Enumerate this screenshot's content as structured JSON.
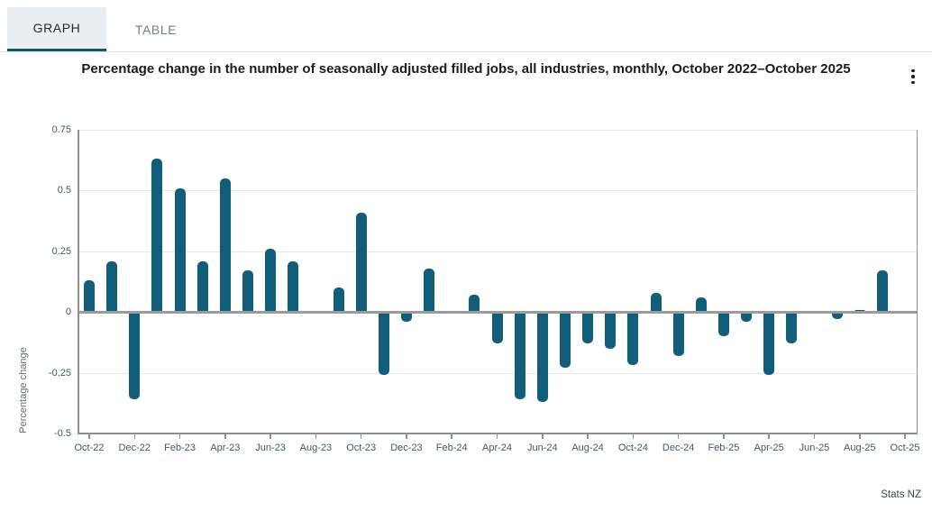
{
  "tabs": {
    "graph": "GRAPH",
    "table": "TABLE"
  },
  "title": "Percentage change in the number of seasonally adjusted filled jobs, all industries, monthly, October 2022–October 2025",
  "icons": {
    "options_menu": "kebab-vertical-icon"
  },
  "source": "Stats NZ",
  "colors": {
    "bar": "#115e7b",
    "tab_underline": "#15566e",
    "active_tab_bg": "#e9eef0",
    "gridline": "#e8e8e8",
    "zero_line": "#9b9b9b",
    "tick_text": "#415a6b"
  },
  "chart_data": {
    "type": "bar",
    "title": "Percentage change in the number of seasonally adjusted filled jobs, all industries, monthly, October 2022–October 2025",
    "xlabel": "",
    "ylabel": "Percentage change",
    "ylim": [
      -0.5,
      0.75
    ],
    "y_ticks": [
      0.75,
      0.5,
      0.25,
      0,
      -0.25,
      -0.5
    ],
    "y_tick_labels": [
      "0.75",
      "0.5",
      "0.25",
      "0",
      "-0.25",
      "-0.5"
    ],
    "grid": true,
    "legend": false,
    "x_tick_labels": [
      "Oct-22",
      "Dec-22",
      "Feb-23",
      "Apr-23",
      "Jun-23",
      "Aug-23",
      "Oct-23",
      "Dec-23",
      "Feb-24",
      "Apr-24",
      "Jun-24",
      "Aug-24",
      "Oct-24",
      "Dec-24",
      "Feb-25",
      "Apr-25",
      "Jun-25",
      "Aug-25",
      "Oct-25"
    ],
    "categories": [
      "Oct-22",
      "Nov-22",
      "Dec-22",
      "Jan-23",
      "Feb-23",
      "Mar-23",
      "Apr-23",
      "May-23",
      "Jun-23",
      "Jul-23",
      "Aug-23",
      "Sep-23",
      "Oct-23",
      "Nov-23",
      "Dec-23",
      "Jan-24",
      "Feb-24",
      "Mar-24",
      "Apr-24",
      "May-24",
      "Jun-24",
      "Jul-24",
      "Aug-24",
      "Sep-24",
      "Oct-24",
      "Nov-24",
      "Dec-24",
      "Jan-25",
      "Feb-25",
      "Mar-25",
      "Apr-25",
      "May-25",
      "Jun-25",
      "Jul-25",
      "Aug-25",
      "Sep-25",
      "Oct-25"
    ],
    "values": [
      0.13,
      0.21,
      -0.36,
      0.63,
      0.51,
      0.21,
      0.55,
      0.17,
      0.26,
      0.21,
      0.0,
      0.1,
      0.41,
      -0.26,
      -0.04,
      0.18,
      0.0,
      0.07,
      -0.13,
      -0.36,
      -0.37,
      -0.23,
      -0.13,
      -0.15,
      -0.22,
      0.08,
      -0.18,
      0.06,
      -0.1,
      -0.04,
      -0.26,
      -0.13,
      0.0,
      -0.03,
      0.01,
      0.17,
      0.0
    ]
  }
}
